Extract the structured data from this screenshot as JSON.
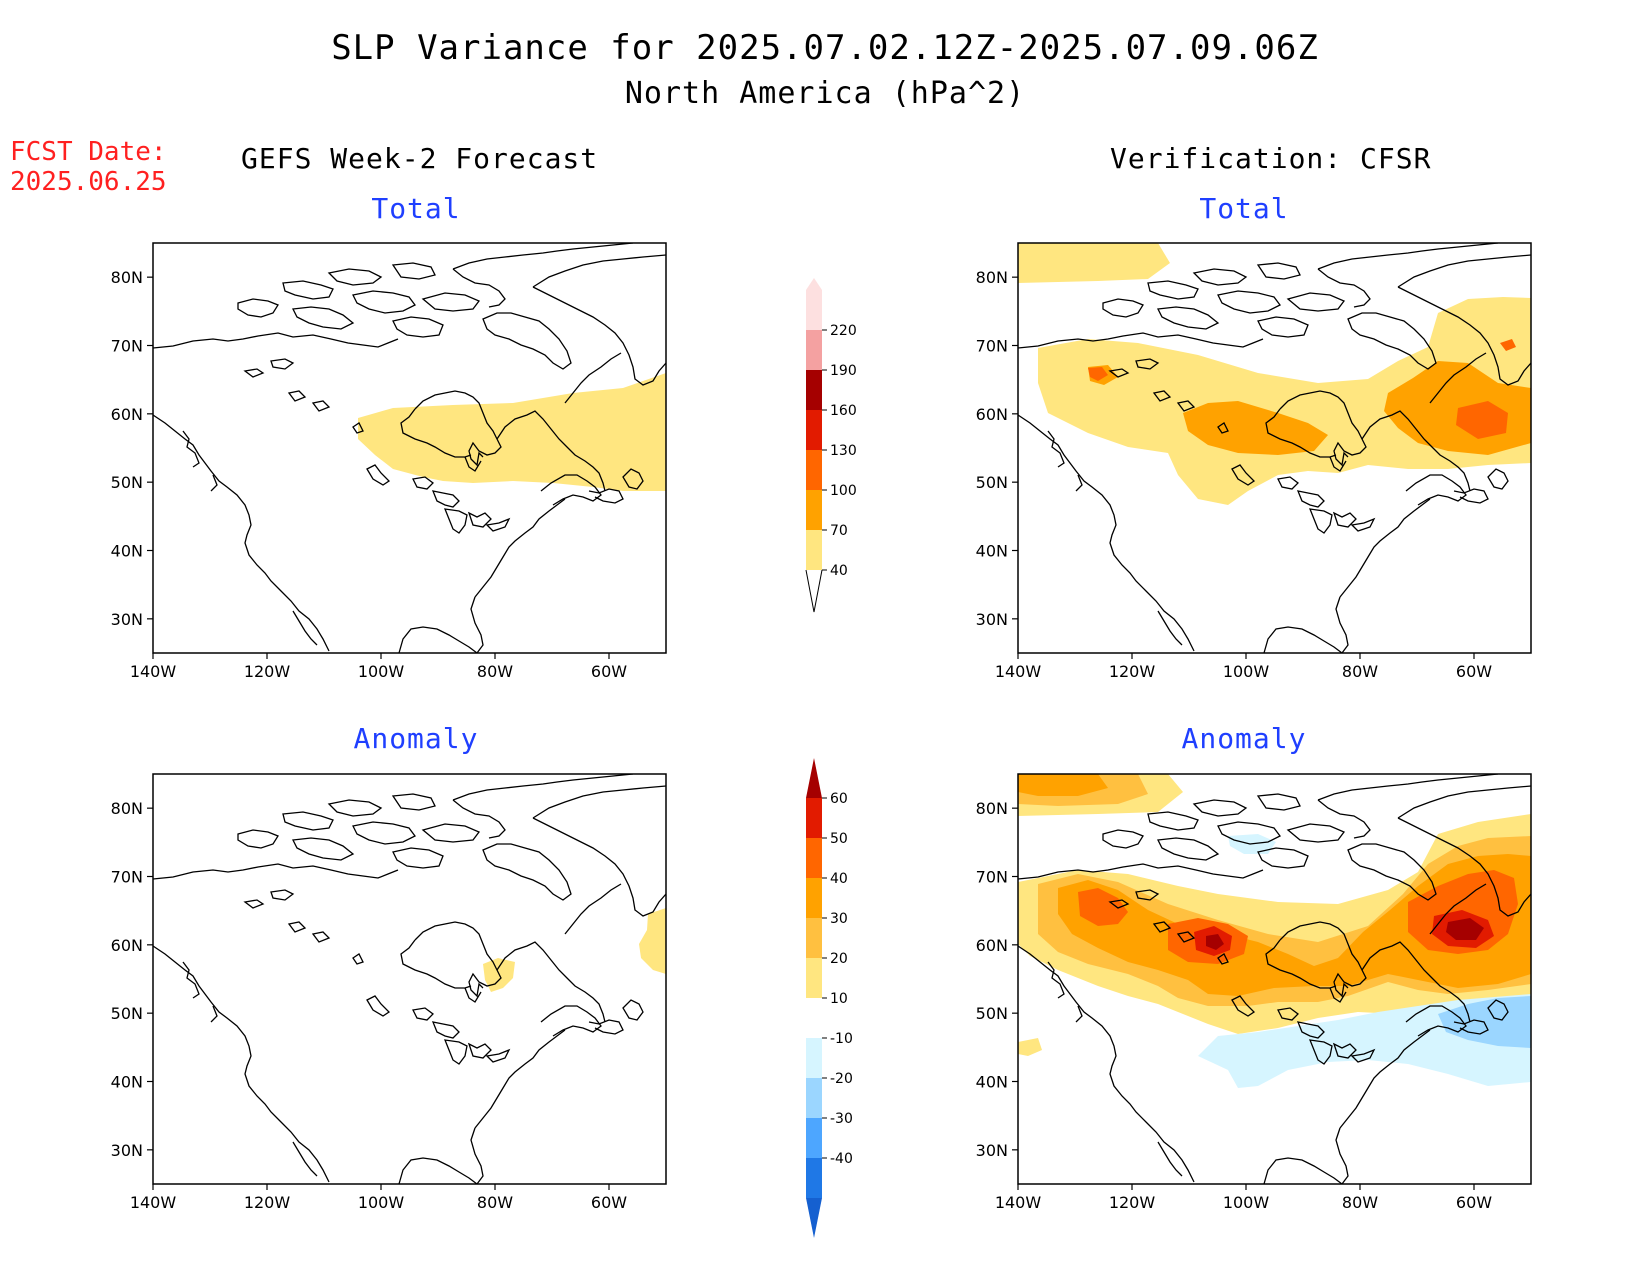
{
  "title": {
    "line1": "SLP Variance for 2025.07.02.12Z-2025.07.09.06Z",
    "line2": "North America (hPa^2)"
  },
  "fcst": {
    "label": "FCST Date:",
    "date": "2025.06.25"
  },
  "columns": {
    "left": "GEFS Week-2 Forecast",
    "right": "Verification: CFSR"
  },
  "panels": {
    "tl": "Total",
    "tr": "Total",
    "bl": "Anomaly",
    "br": "Anomaly"
  },
  "axes": {
    "lat_labels": [
      "80N",
      "70N",
      "60N",
      "50N",
      "40N",
      "30N"
    ],
    "lat_values": [
      80,
      70,
      60,
      50,
      40,
      30
    ],
    "lon_labels": [
      "140W",
      "120W",
      "100W",
      "80W",
      "60W"
    ],
    "lon_values": [
      -140,
      -120,
      -100,
      -80,
      -60
    ],
    "lat_range": [
      25,
      85
    ],
    "lon_range": [
      -140,
      -50
    ]
  },
  "colorbars": {
    "total": {
      "labels": [
        "40",
        "70",
        "100",
        "130",
        "160",
        "190",
        "220"
      ],
      "colors": [
        "#ffe680",
        "#ffa200",
        "#ff6600",
        "#e21b00",
        "#a50000",
        "#f4a1a1",
        "#fde0e0"
      ]
    },
    "anomaly": {
      "labels": [
        "60",
        "50",
        "40",
        "30",
        "20",
        "10",
        "-10",
        "-20",
        "-30",
        "-40"
      ],
      "colors": [
        "#a50000",
        "#e21b00",
        "#ff6600",
        "#ffa200",
        "#ffc040",
        "#ffe680",
        "#ffffff",
        "#d6f5ff",
        "#9bd6ff",
        "#4da6ff",
        "#1f78e6",
        "#1560d0"
      ]
    }
  },
  "palette": {
    "yellow": "#ffe680",
    "light_orange": "#ffc040",
    "orange": "#ffa200",
    "dark_orange": "#ff6600",
    "red": "#e21b00",
    "dark_red": "#a50000",
    "light_blue": "#d6f5ff",
    "blue": "#9bd6ff"
  }
}
